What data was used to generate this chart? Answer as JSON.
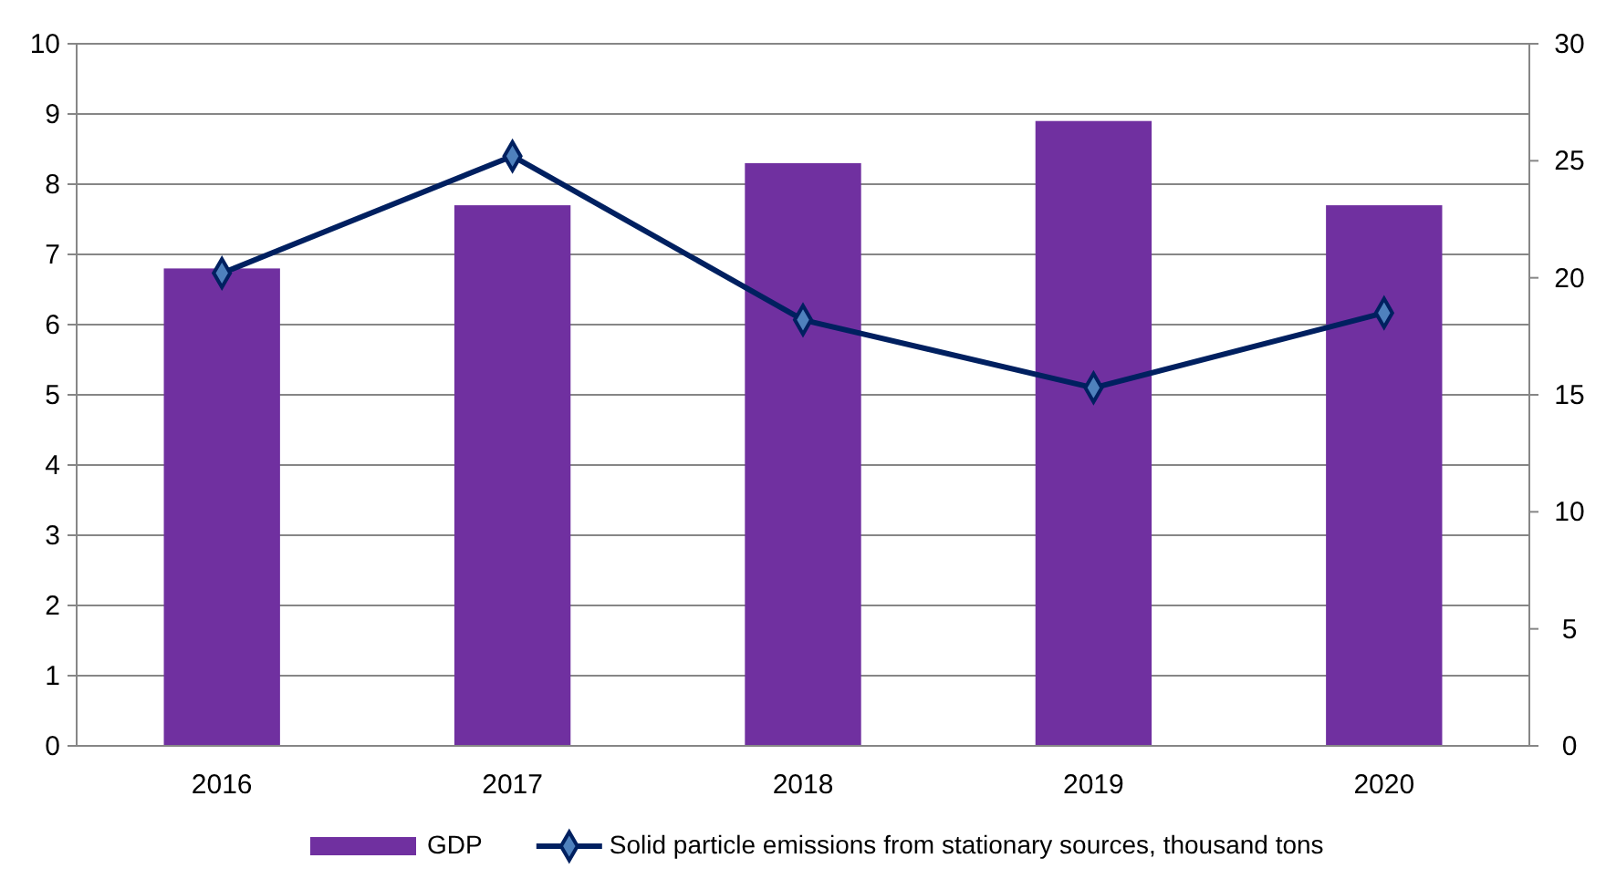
{
  "chart_data": {
    "type": "bar",
    "categories": [
      "2016",
      "2017",
      "2018",
      "2019",
      "2020"
    ],
    "series": [
      {
        "name": "GDP",
        "color": "#7030a0",
        "values": [
          6.8,
          7.7,
          8.3,
          8.9,
          7.7
        ]
      },
      {
        "name": "Solid particle emissions from stationary sources, thousand tons",
        "type": "line",
        "axis": "y2",
        "color": "#002060",
        "marker": "diamond",
        "values": [
          20.2,
          25.2,
          18.2,
          15.3,
          18.5
        ]
      }
    ],
    "ylim": [
      0,
      10
    ],
    "yticks": [
      0,
      1,
      2,
      3,
      4,
      5,
      6,
      7,
      8,
      9,
      10
    ],
    "y2lim": [
      0,
      30
    ],
    "y2ticks": [
      0,
      5,
      10,
      15,
      20,
      25,
      30
    ],
    "grid": "y",
    "legend": "bottom"
  }
}
